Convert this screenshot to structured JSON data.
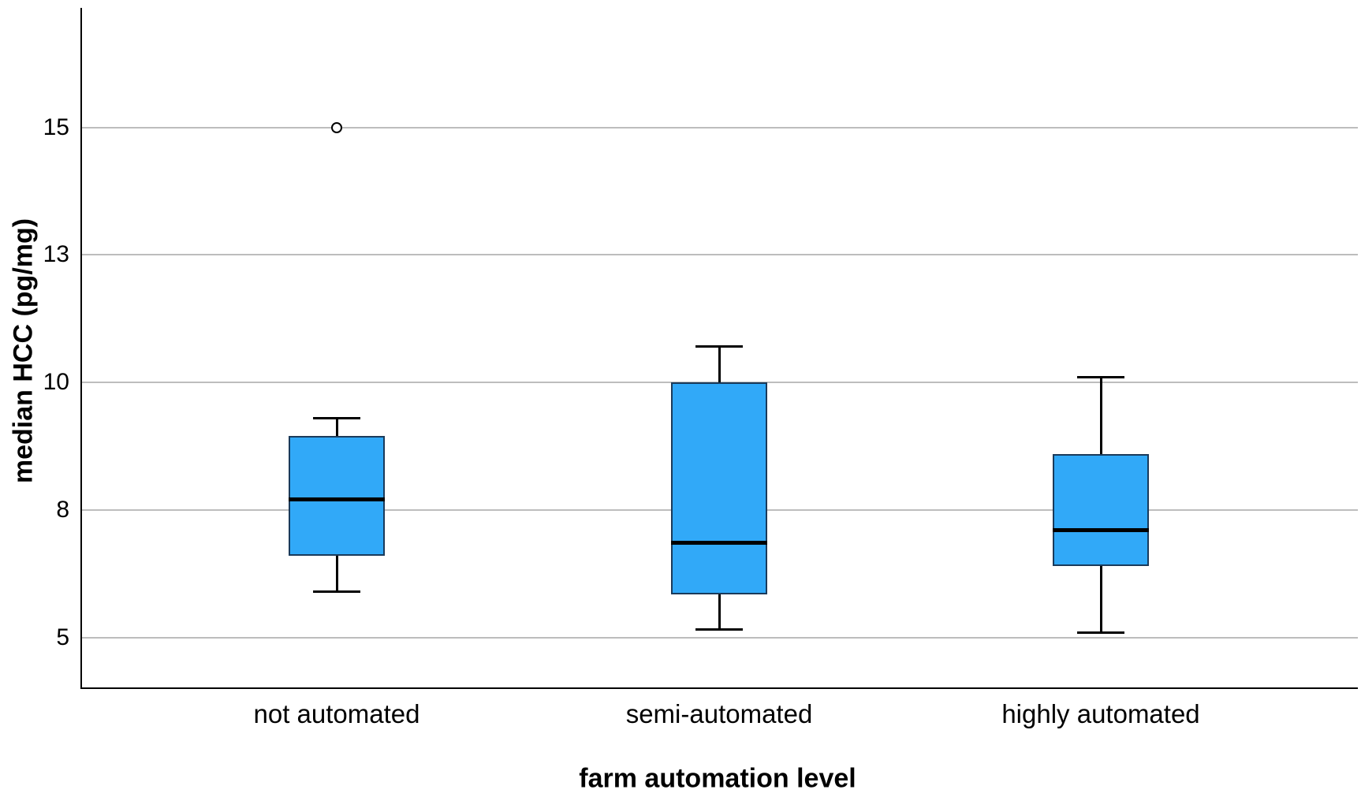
{
  "chart_data": {
    "type": "boxplot",
    "title": "",
    "xlabel": "farm automation level",
    "ylabel": "median HCC (pg/mg)",
    "categories": [
      "not automated",
      "semi-automated",
      "highly automated"
    ],
    "y_ticks": [
      {
        "value": 15,
        "label": "15"
      },
      {
        "value": 12.5,
        "label": "13"
      },
      {
        "value": 10,
        "label": "10"
      },
      {
        "value": 7.5,
        "label": "8"
      },
      {
        "value": 5,
        "label": "5"
      }
    ],
    "ylim": [
      4.0,
      17.3
    ],
    "grid": "horizontal",
    "legend": "none",
    "series": [
      {
        "category": "not automated",
        "whisker_low": 5.9,
        "q1": 6.6,
        "median": 7.7,
        "q3": 8.95,
        "whisker_high": 9.3,
        "outliers": [
          15.0
        ]
      },
      {
        "category": "semi-automated",
        "whisker_low": 5.15,
        "q1": 5.85,
        "median": 6.85,
        "q3": 10.0,
        "whisker_high": 10.7,
        "outliers": []
      },
      {
        "category": "highly automated",
        "whisker_low": 5.1,
        "q1": 6.4,
        "median": 7.1,
        "q3": 8.6,
        "whisker_high": 10.1,
        "outliers": []
      }
    ],
    "colors": {
      "box_fill": "#31A9F8",
      "box_border": "#1A3A5A",
      "median": "#000000",
      "whisker": "#000000",
      "gridline": "#BDBDBD",
      "axis": "#000000",
      "text": "#000000",
      "background": "#FFFFFF"
    }
  }
}
